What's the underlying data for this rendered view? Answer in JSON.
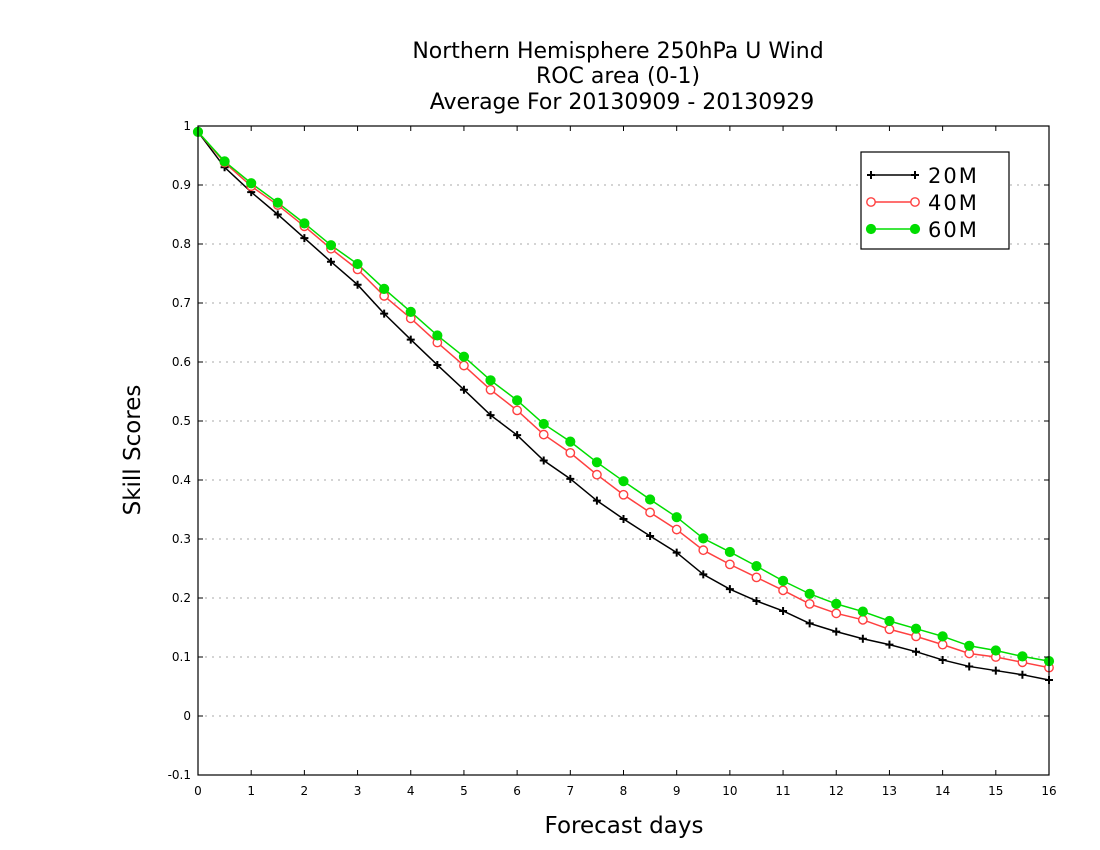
{
  "chart_data": {
    "type": "line",
    "title": [
      "Northern Hemisphere 250hPa U Wind",
      "ROC area (0-1)",
      "Average For 20130909 - 20130929"
    ],
    "xlabel": "Forecast days",
    "ylabel": "Skill Scores",
    "xlim": [
      0,
      16
    ],
    "ylim": [
      -0.1,
      1
    ],
    "xticks": [
      0,
      1,
      2,
      3,
      4,
      5,
      6,
      7,
      8,
      9,
      10,
      11,
      12,
      13,
      14,
      15,
      16
    ],
    "xtick_labels": [
      "0",
      "1",
      "2",
      "3",
      "4",
      "5",
      "6",
      "7",
      "8",
      "9",
      "10",
      "11",
      "12",
      "13",
      "14",
      "15",
      "16"
    ],
    "yticks": [
      -0.1,
      0,
      0.1,
      0.2,
      0.3,
      0.4,
      0.5,
      0.6,
      0.7,
      0.8,
      0.9,
      1
    ],
    "ytick_labels": [
      "-0.1",
      "0",
      "0.1",
      "0.2",
      "0.3",
      "0.4",
      "0.5",
      "0.6",
      "0.7",
      "0.8",
      "0.9",
      "1"
    ],
    "grid": "horizontal-dotted",
    "legend_position": "top-right",
    "x": [
      0,
      0.5,
      1,
      1.5,
      2,
      2.5,
      3,
      3.5,
      4,
      4.5,
      5,
      5.5,
      6,
      6.5,
      7,
      7.5,
      8,
      8.5,
      9,
      9.5,
      10,
      10.5,
      11,
      11.5,
      12,
      12.5,
      13,
      13.5,
      14,
      14.5,
      15,
      15.5,
      16
    ],
    "series": [
      {
        "name": "20M",
        "color": "#000000",
        "marker": "plus",
        "values": [
          0.99,
          0.93,
          0.888,
          0.85,
          0.81,
          0.77,
          0.731,
          0.682,
          0.638,
          0.595,
          0.553,
          0.51,
          0.476,
          0.433,
          0.402,
          0.365,
          0.334,
          0.305,
          0.277,
          0.24,
          0.215,
          0.195,
          0.178,
          0.157,
          0.143,
          0.131,
          0.121,
          0.109,
          0.095,
          0.084,
          0.077,
          0.07,
          0.061
        ]
      },
      {
        "name": "40M",
        "color": "#ff4040",
        "marker": "open-circle",
        "values": [
          0.99,
          0.938,
          0.898,
          0.866,
          0.83,
          0.792,
          0.757,
          0.712,
          0.674,
          0.633,
          0.594,
          0.553,
          0.518,
          0.477,
          0.446,
          0.409,
          0.375,
          0.345,
          0.316,
          0.281,
          0.257,
          0.235,
          0.213,
          0.19,
          0.174,
          0.163,
          0.147,
          0.135,
          0.121,
          0.106,
          0.1,
          0.091,
          0.082
        ]
      },
      {
        "name": "60M",
        "color": "#00dd00",
        "marker": "filled-circle",
        "values": [
          0.99,
          0.94,
          0.903,
          0.87,
          0.835,
          0.798,
          0.766,
          0.724,
          0.685,
          0.645,
          0.609,
          0.569,
          0.535,
          0.495,
          0.465,
          0.43,
          0.398,
          0.367,
          0.337,
          0.301,
          0.278,
          0.254,
          0.229,
          0.207,
          0.19,
          0.177,
          0.161,
          0.148,
          0.135,
          0.119,
          0.111,
          0.101,
          0.093
        ]
      }
    ]
  }
}
